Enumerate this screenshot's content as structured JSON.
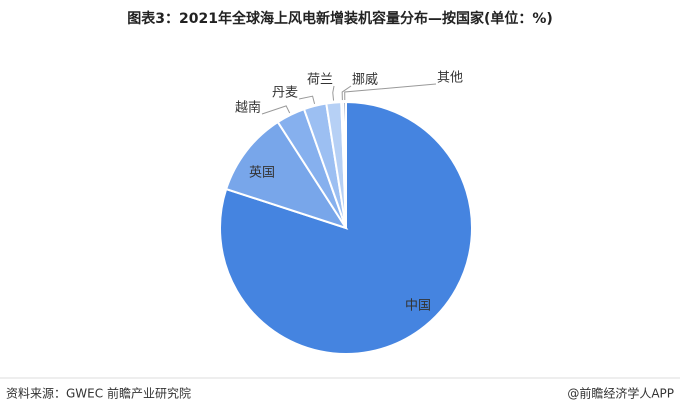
{
  "chart_data": {
    "type": "pie",
    "title": "图表3：2021年全球海上风电新增装机容量分布—按国家(单位：%)",
    "categories": [
      "中国",
      "英国",
      "越南",
      "丹麦",
      "荷兰",
      "挪威",
      "其他"
    ],
    "values": [
      80.0,
      10.9,
      3.7,
      2.9,
      1.9,
      0.3,
      0.3
    ],
    "colors": [
      "#4584e0",
      "#78a6ea",
      "#86b0ee",
      "#9cbff2",
      "#b6d0f5",
      "#d3e3f9",
      "#1d3a75"
    ],
    "source": "资料来源：GWEC 前瞻产业研究院",
    "credit": "@前瞻经济学人APP"
  }
}
